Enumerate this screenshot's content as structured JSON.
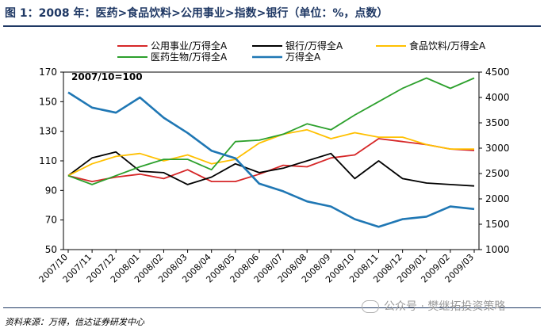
{
  "header": {
    "title": "图 1：2008 年：医药>食品饮料>公用事业>指数>银行（单位：%，点数）"
  },
  "footer": {
    "source": "资料来源：万得，信达证券研发中心",
    "watermark": "公众号 · 樊继拓投资策略"
  },
  "chart_data": {
    "type": "line",
    "annotation": "2007/10=100",
    "x": [
      "2007/10",
      "2007/11",
      "2007/12",
      "2008/01",
      "2008/02",
      "2008/03",
      "2008/04",
      "2008/05",
      "2008/06",
      "2008/07",
      "2008/08",
      "2008/09",
      "2008/10",
      "2008/11",
      "2008/12",
      "2009/01",
      "2009/02",
      "2009/03"
    ],
    "y_left": {
      "lim": [
        50,
        170
      ],
      "ticks": [
        "170",
        "150",
        "130",
        "110",
        "90",
        "70",
        "50"
      ]
    },
    "y_right": {
      "lim": [
        1000,
        4500
      ],
      "ticks": [
        "4500",
        "4000",
        "3500",
        "3000",
        "2500",
        "2000",
        "1500",
        "1000"
      ]
    },
    "legend": [
      "公用事业/万得全A",
      "银行/万得全A",
      "食品饮料/万得全A",
      "医药生物/万得全A",
      "万得全A"
    ],
    "series": [
      {
        "name": "公用事业/万得全A",
        "axis": "left",
        "color": "#d62728",
        "values": [
          100,
          96,
          99,
          101,
          98,
          104,
          96,
          96,
          101,
          107,
          106,
          112,
          114,
          125,
          123,
          121,
          118,
          117
        ]
      },
      {
        "name": "银行/万得全A",
        "axis": "left",
        "color": "#000000",
        "values": [
          100,
          112,
          116,
          103,
          102,
          94,
          99,
          108,
          102,
          105,
          110,
          115,
          98,
          110,
          98,
          95,
          94,
          93
        ]
      },
      {
        "name": "食品饮料/万得全A",
        "axis": "left",
        "color": "#ffc000",
        "values": [
          100,
          108,
          113,
          115,
          110,
          114,
          108,
          111,
          122,
          128,
          131,
          125,
          129,
          126,
          126,
          121,
          118,
          118
        ]
      },
      {
        "name": "医药生物/万得全A",
        "axis": "left",
        "color": "#2ca02c",
        "values": [
          100,
          94,
          100,
          106,
          111,
          111,
          104,
          123,
          124,
          128,
          135,
          131,
          141,
          150,
          159,
          166,
          159,
          166
        ]
      },
      {
        "name": "万得全A",
        "axis": "right",
        "color": "#1f77b4",
        "values": [
          4100,
          3800,
          3700,
          4000,
          3600,
          3300,
          2950,
          2800,
          2300,
          2150,
          1950,
          1850,
          1600,
          1450,
          1600,
          1650,
          1850,
          1800
        ]
      }
    ]
  }
}
